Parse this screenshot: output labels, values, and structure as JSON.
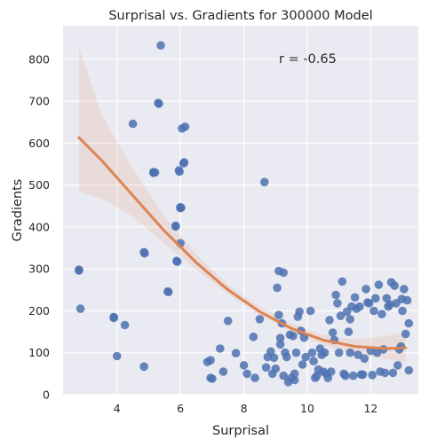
{
  "chart_data": {
    "type": "scatter",
    "title": "Surprisal vs. Gradients for 300000 Model",
    "xlabel": "Surprisal",
    "ylabel": "Gradients",
    "xlim": [
      2.3,
      13.5
    ],
    "ylim": [
      0,
      880
    ],
    "xticks": [
      4,
      6,
      8,
      10,
      12
    ],
    "yticks": [
      0,
      100,
      200,
      300,
      400,
      500,
      600,
      700,
      800
    ],
    "grid": true,
    "annotation": "r = -0.65",
    "colors": {
      "background": "#eaeaf2",
      "grid": "#ffffff",
      "points": "#4c72b0",
      "fit_line": "#dd8452",
      "confidence_band": "#dd8452"
    },
    "points": [
      [
        2.8,
        298
      ],
      [
        2.8,
        296
      ],
      [
        2.85,
        205
      ],
      [
        3.9,
        185
      ],
      [
        3.9,
        183
      ],
      [
        4.0,
        92
      ],
      [
        4.25,
        166
      ],
      [
        4.5,
        646
      ],
      [
        4.85,
        340
      ],
      [
        4.87,
        337
      ],
      [
        4.85,
        67
      ],
      [
        5.15,
        531
      ],
      [
        5.15,
        529
      ],
      [
        5.2,
        530
      ],
      [
        5.3,
        696
      ],
      [
        5.32,
        694
      ],
      [
        5.38,
        833
      ],
      [
        5.6,
        246
      ],
      [
        5.62,
        245
      ],
      [
        5.85,
        403
      ],
      [
        5.85,
        401
      ],
      [
        5.88,
        319
      ],
      [
        5.9,
        317
      ],
      [
        5.95,
        535
      ],
      [
        5.97,
        532
      ],
      [
        6.0,
        447
      ],
      [
        6.0,
        445
      ],
      [
        6.02,
        446
      ],
      [
        6.0,
        361
      ],
      [
        6.05,
        635
      ],
      [
        6.1,
        552
      ],
      [
        6.12,
        554
      ],
      [
        6.15,
        639
      ],
      [
        6.85,
        78
      ],
      [
        6.95,
        82
      ],
      [
        6.95,
        40
      ],
      [
        7.0,
        38
      ],
      [
        7.25,
        110
      ],
      [
        7.35,
        55
      ],
      [
        7.5,
        176
      ],
      [
        7.75,
        99
      ],
      [
        8.0,
        70
      ],
      [
        8.1,
        50
      ],
      [
        8.3,
        138
      ],
      [
        8.35,
        40
      ],
      [
        8.5,
        180
      ],
      [
        8.65,
        507
      ],
      [
        8.7,
        65
      ],
      [
        8.75,
        90
      ],
      [
        8.85,
        103
      ],
      [
        8.9,
        50
      ],
      [
        8.95,
        88
      ],
      [
        9.0,
        62
      ],
      [
        9.05,
        255
      ],
      [
        9.1,
        190
      ],
      [
        9.1,
        295
      ],
      [
        9.15,
        135
      ],
      [
        9.15,
        120
      ],
      [
        9.2,
        170
      ],
      [
        9.25,
        291
      ],
      [
        9.25,
        45
      ],
      [
        9.3,
        100
      ],
      [
        9.35,
        90
      ],
      [
        9.4,
        30
      ],
      [
        9.45,
        143
      ],
      [
        9.5,
        40
      ],
      [
        9.55,
        140
      ],
      [
        9.6,
        35
      ],
      [
        9.6,
        50
      ],
      [
        9.65,
        100
      ],
      [
        9.7,
        186
      ],
      [
        9.75,
        198
      ],
      [
        9.8,
        152
      ],
      [
        9.85,
        72
      ],
      [
        9.9,
        136
      ],
      [
        9.95,
        90
      ],
      [
        10.1,
        200
      ],
      [
        10.15,
        100
      ],
      [
        10.2,
        80
      ],
      [
        10.25,
        40
      ],
      [
        10.3,
        45
      ],
      [
        10.35,
        60
      ],
      [
        10.4,
        110
      ],
      [
        10.45,
        95
      ],
      [
        10.5,
        55
      ],
      [
        10.55,
        100
      ],
      [
        10.6,
        50
      ],
      [
        10.65,
        40
      ],
      [
        10.7,
        178
      ],
      [
        10.75,
        55
      ],
      [
        10.8,
        148
      ],
      [
        10.85,
        130
      ],
      [
        10.9,
        238
      ],
      [
        10.95,
        218
      ],
      [
        11.0,
        100
      ],
      [
        11.05,
        188
      ],
      [
        11.1,
        270
      ],
      [
        11.15,
        50
      ],
      [
        11.2,
        45
      ],
      [
        11.25,
        198
      ],
      [
        11.3,
        150
      ],
      [
        11.35,
        180
      ],
      [
        11.35,
        100
      ],
      [
        11.4,
        210
      ],
      [
        11.45,
        45
      ],
      [
        11.5,
        232
      ],
      [
        11.55,
        205
      ],
      [
        11.6,
        95
      ],
      [
        11.65,
        210
      ],
      [
        11.7,
        48
      ],
      [
        11.75,
        48
      ],
      [
        11.8,
        86
      ],
      [
        11.85,
        252
      ],
      [
        11.9,
        220
      ],
      [
        11.95,
        218
      ],
      [
        12.0,
        105
      ],
      [
        12.05,
        47
      ],
      [
        12.1,
        200
      ],
      [
        12.15,
        230
      ],
      [
        12.2,
        100
      ],
      [
        12.25,
        262
      ],
      [
        12.3,
        55
      ],
      [
        12.35,
        192
      ],
      [
        12.4,
        108
      ],
      [
        12.45,
        52
      ],
      [
        12.5,
        230
      ],
      [
        12.55,
        210
      ],
      [
        12.6,
        215
      ],
      [
        12.65,
        268
      ],
      [
        12.7,
        52
      ],
      [
        12.75,
        260
      ],
      [
        12.8,
        218
      ],
      [
        12.85,
        70
      ],
      [
        12.9,
        108
      ],
      [
        12.95,
        115
      ],
      [
        12.98,
        228
      ],
      [
        13.0,
        200
      ],
      [
        13.05,
        252
      ],
      [
        13.1,
        145
      ],
      [
        13.15,
        225
      ],
      [
        13.2,
        170
      ],
      [
        13.2,
        58
      ]
    ],
    "fit": {
      "x": [
        2.8,
        3.5,
        4.5,
        5.5,
        6.5,
        7.5,
        8.5,
        9.5,
        10.5,
        11.5,
        12.5,
        13.1
      ],
      "y": [
        613,
        560,
        475,
        390,
        315,
        250,
        198,
        158,
        130,
        115,
        110,
        112
      ],
      "lower": [
        485,
        468,
        425,
        360,
        298,
        240,
        190,
        150,
        118,
        98,
        85,
        78
      ],
      "upper": [
        828,
        670,
        540,
        425,
        335,
        262,
        210,
        170,
        142,
        132,
        140,
        150
      ]
    }
  }
}
